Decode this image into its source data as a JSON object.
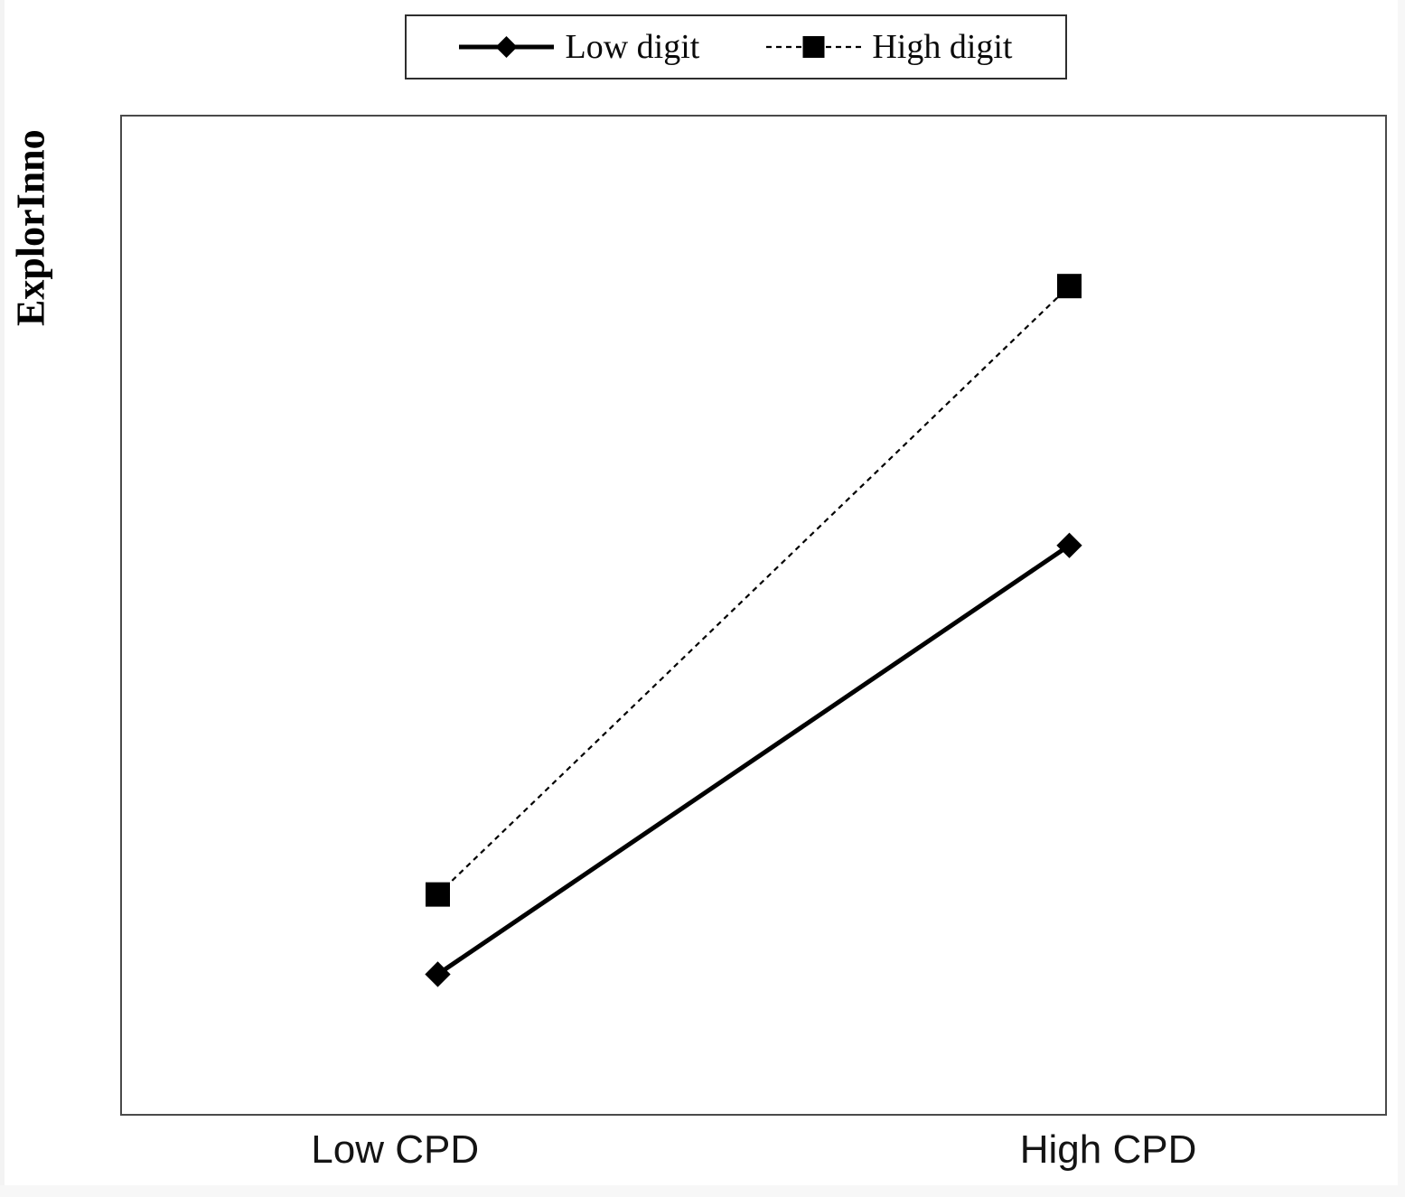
{
  "chart_data": {
    "type": "line",
    "title": "",
    "ylabel": "ExplorInno",
    "xlabel": "",
    "categories": [
      "Low CPD",
      "High CPD"
    ],
    "x_positions": [
      0.25,
      0.75
    ],
    "ylim": [
      0,
      1
    ],
    "y_ticks": [],
    "grid": false,
    "legend_position": "top-center",
    "legend_border": true,
    "series": [
      {
        "name": "Low digit",
        "values": [
          0.14,
          0.57
        ],
        "line_style": "solid",
        "line_width": 5,
        "marker": "diamond",
        "color": "#000000"
      },
      {
        "name": "High digit",
        "values": [
          0.22,
          0.83
        ],
        "line_style": "dashed",
        "line_width": 2.2,
        "marker": "square",
        "color": "#000000"
      }
    ],
    "note": "no numeric y-axis tick labels shown; series values are relative fractions of plot height"
  },
  "colors": {
    "line": "#000000",
    "plot_border": "#4a4a4a",
    "legend_border": "#2e2e2e",
    "background": "#ffffff"
  }
}
